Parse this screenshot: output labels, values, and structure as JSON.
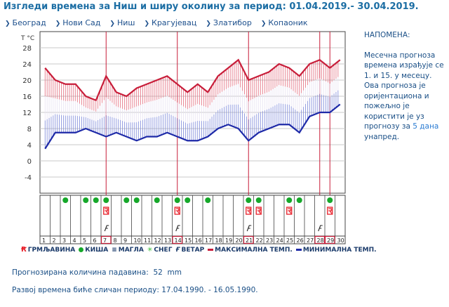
{
  "page": {
    "title": "Изгледи времена за Ниш и ширу околину за период: 01.04.2019.- 30.04.2019."
  },
  "nav": [
    {
      "label": "Београд",
      "icon": "arrow-right-icon"
    },
    {
      "label": "Нови Сад",
      "icon": "arrow-right-icon"
    },
    {
      "label": "Ниш",
      "icon": "arrow-right-icon"
    },
    {
      "label": "Крагујевац",
      "icon": "arrow-right-icon"
    },
    {
      "label": "Златибор",
      "icon": "arrow-right-icon"
    },
    {
      "label": "Копаоник",
      "icon": "arrow-right-icon"
    }
  ],
  "note": {
    "title": "НАПОМЕНА:",
    "text_1": "Месечна прогноза времена израђује се 1. и 15. у месецу. Ова прогноза је оријентациона и пожељно је користити је уз прогнозу за ",
    "highlight": "5 дана",
    "text_2": " унапред."
  },
  "legend": {
    "thunder": "ГРМЉАВИНА",
    "rain": "КИША",
    "fog": "МАГЛА",
    "snow": "СНЕГ",
    "wind": "ВЕТАР",
    "max": "МАКСИМАЛНА ТЕМП.",
    "min": "МИНИМАЛНА ТЕМП."
  },
  "footer": {
    "precip_label": "Прогнозирана количина падавина:",
    "precip_value": "52",
    "precip_unit": "mm",
    "similar": "Развој времена биће сличан периоду: 17.04.1990. - 16.05.1990."
  },
  "colors": {
    "max_line": "#c81e3a",
    "min_line": "#1e2aa8",
    "grid": "#c8c8c8",
    "marker": "#e8202a",
    "rain": "#16a82a",
    "title": "#1c6ea4"
  },
  "chart_data": {
    "type": "line",
    "axis_title": "T °C",
    "x": [
      1,
      2,
      3,
      4,
      5,
      6,
      7,
      8,
      9,
      10,
      11,
      12,
      13,
      14,
      15,
      16,
      17,
      18,
      19,
      20,
      21,
      22,
      23,
      24,
      25,
      26,
      27,
      28,
      29,
      30
    ],
    "ylim": [
      -8,
      32
    ],
    "yticks": [
      28,
      24,
      20,
      16,
      12,
      8,
      4,
      0,
      -4
    ],
    "series": [
      {
        "name": "МАКСИМАЛНА ТЕМП.",
        "color": "#c81e3a",
        "values": [
          23,
          20,
          19,
          19,
          16,
          15,
          21,
          17,
          16,
          18,
          19,
          20,
          21,
          19,
          17,
          19,
          17,
          21,
          23,
          25,
          20,
          21,
          22,
          24,
          23,
          21,
          24,
          25,
          23,
          25
        ]
      },
      {
        "name": "МИНИМАЛНА ТЕМП.",
        "color": "#1e2aa8",
        "values": [
          3,
          7,
          7,
          7,
          8,
          7,
          6,
          7,
          6,
          5,
          6,
          6,
          7,
          6,
          5,
          5,
          6,
          8,
          9,
          8,
          5,
          7,
          8,
          9,
          9,
          7,
          11,
          12,
          12,
          14
        ]
      }
    ],
    "highlighted_days": [
      7,
      14,
      21,
      28,
      29
    ],
    "events": {
      "rain": [
        3,
        5,
        6,
        7,
        9,
        10,
        12,
        14,
        15,
        17,
        21,
        22,
        25,
        26,
        29
      ],
      "thunder": [
        7,
        14,
        21,
        22,
        25,
        29
      ],
      "wind": [
        7,
        14,
        21,
        28
      ]
    }
  }
}
